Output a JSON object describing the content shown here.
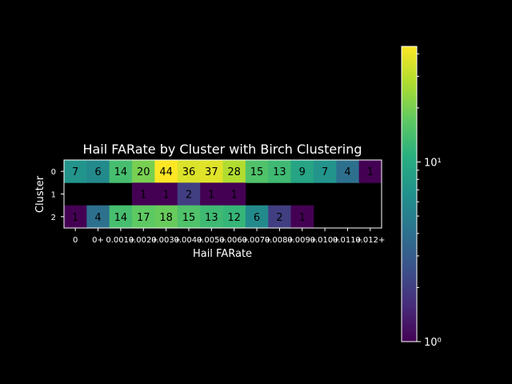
{
  "chart_data": {
    "type": "heatmap",
    "title": "Hail FARate by Cluster with Birch Clustering",
    "xlabel": "Hail FARate",
    "ylabel": "Cluster",
    "x_categories": [
      "0",
      "0+",
      "0.001+",
      "0.002+",
      "0.003+",
      "0.004+",
      "0.005+",
      "0.006+",
      "0.007+",
      "0.008+",
      "0.009+",
      "0.010+",
      "0.011+",
      "0.012+"
    ],
    "y_categories": [
      "0",
      "1",
      "2"
    ],
    "values": [
      [
        7,
        6,
        14,
        20,
        44,
        36,
        37,
        28,
        15,
        13,
        9,
        7,
        4,
        1
      ],
      [
        null,
        null,
        null,
        1,
        1,
        2,
        1,
        1,
        null,
        null,
        null,
        null,
        null,
        null
      ],
      [
        1,
        4,
        14,
        17,
        18,
        15,
        13,
        12,
        6,
        2,
        1,
        null,
        null,
        null
      ]
    ],
    "colorbar": {
      "scale": "log",
      "colormap": "viridis",
      "range": [
        1,
        44
      ],
      "tick_labels": [
        "10⁰",
        "10¹"
      ]
    }
  }
}
